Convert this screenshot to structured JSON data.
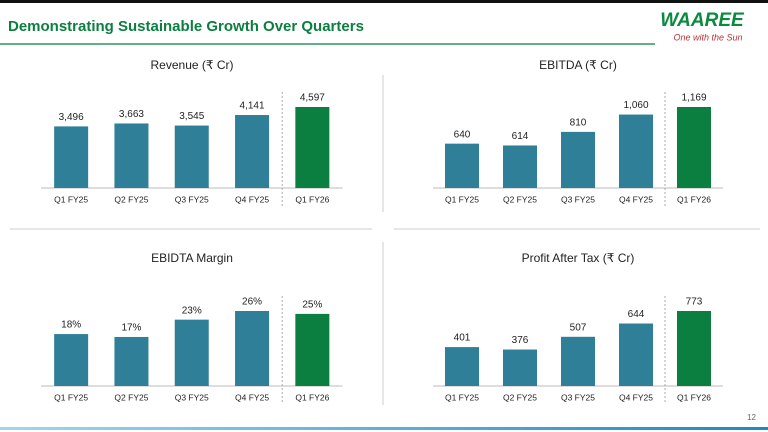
{
  "header": {
    "title": "Demonstrating Sustainable Growth Over Quarters"
  },
  "logo": {
    "name": "WAAREE",
    "tagline": "One with the Sun"
  },
  "page_number": "12",
  "chart_data": [
    {
      "type": "bar",
      "title": "Revenue (₹ Cr)",
      "categories": [
        "Q1 FY25",
        "Q2 FY25",
        "Q3 FY25",
        "Q4 FY25",
        "Q1 FY26"
      ],
      "values": [
        3496,
        3663,
        3545,
        4141,
        4597
      ],
      "value_labels": [
        "3,496",
        "3,663",
        "3,545",
        "4,141",
        "4,597"
      ],
      "colors": [
        "#2f7f98",
        "#2f7f98",
        "#2f7f98",
        "#2f7f98",
        "#0b7f3f"
      ]
    },
    {
      "type": "bar",
      "title": "EBITDA (₹ Cr)",
      "categories": [
        "Q1 FY25",
        "Q2 FY25",
        "Q3 FY25",
        "Q4 FY25",
        "Q1 FY26"
      ],
      "values": [
        640,
        614,
        810,
        1060,
        1169
      ],
      "value_labels": [
        "640",
        "614",
        "810",
        "1,060",
        "1,169"
      ],
      "colors": [
        "#2f7f98",
        "#2f7f98",
        "#2f7f98",
        "#2f7f98",
        "#0b7f3f"
      ]
    },
    {
      "type": "bar",
      "title": "EBIDTA Margin",
      "categories": [
        "Q1 FY25",
        "Q2 FY25",
        "Q3 FY25",
        "Q4 FY25",
        "Q1 FY26"
      ],
      "values": [
        18,
        17,
        23,
        26,
        25
      ],
      "value_labels": [
        "18%",
        "17%",
        "23%",
        "26%",
        "25%"
      ],
      "colors": [
        "#2f7f98",
        "#2f7f98",
        "#2f7f98",
        "#2f7f98",
        "#0b7f3f"
      ]
    },
    {
      "type": "bar",
      "title": "Profit After Tax (₹ Cr)",
      "categories": [
        "Q1 FY25",
        "Q2 FY25",
        "Q3 FY25",
        "Q4 FY25",
        "Q1 FY26"
      ],
      "values": [
        401,
        376,
        507,
        644,
        773
      ],
      "value_labels": [
        "401",
        "376",
        "507",
        "644",
        "773"
      ],
      "colors": [
        "#2f7f98",
        "#2f7f98",
        "#2f7f98",
        "#2f7f98",
        "#0b7f3f"
      ]
    }
  ]
}
